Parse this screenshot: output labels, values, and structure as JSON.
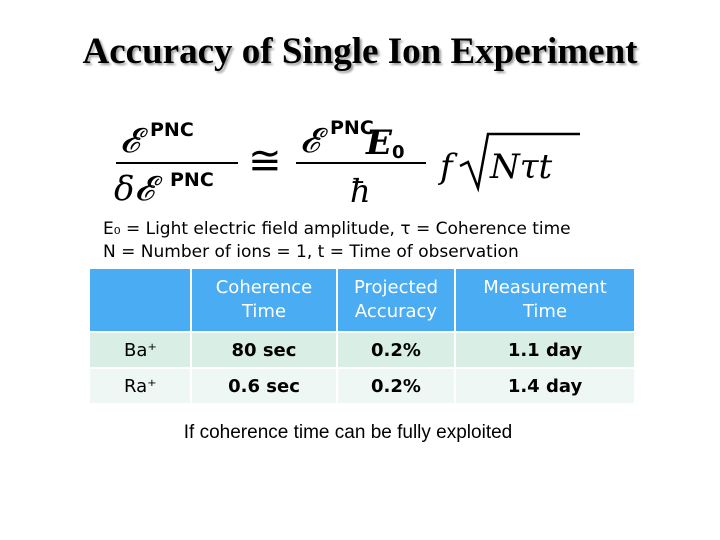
{
  "title": "Accuracy of Single Ion Experiment",
  "formula": {
    "lhs_num_sym": "𝓔",
    "lhs_num_sup": "PNC",
    "lhs_den_sym": "δ𝓔",
    "lhs_den_sup": "PNC",
    "approx": "≅",
    "rhs_num_sym": "𝓔",
    "rhs_num_sup": "PNC",
    "rhs_num_e": "E",
    "rhs_num_e_sub": "0",
    "rhs_den": "ħ",
    "f": "f",
    "sqrt_content": "Nτt"
  },
  "definitions": {
    "line1": "E₀ = Light electric field amplitude, τ = Coherence time",
    "line2": "N = Number of ions = 1, t = Time of observation"
  },
  "table": {
    "headers": [
      [
        "",
        ""
      ],
      [
        "Coherence",
        "Time"
      ],
      [
        "Projected",
        "Accuracy"
      ],
      [
        "Measurement",
        "Time"
      ]
    ],
    "rows": [
      [
        "Ba⁺",
        "80 sec",
        "0.2%",
        "1.1 day"
      ],
      [
        "Ra⁺",
        "0.6 sec",
        "0.2%",
        "1.4 day"
      ]
    ]
  },
  "caption": "If coherence time can be fully exploited",
  "colors": {
    "header_bg": "#4aacf2",
    "row1_bg": "#d9efe5",
    "row2_bg": "#eef7f3"
  }
}
